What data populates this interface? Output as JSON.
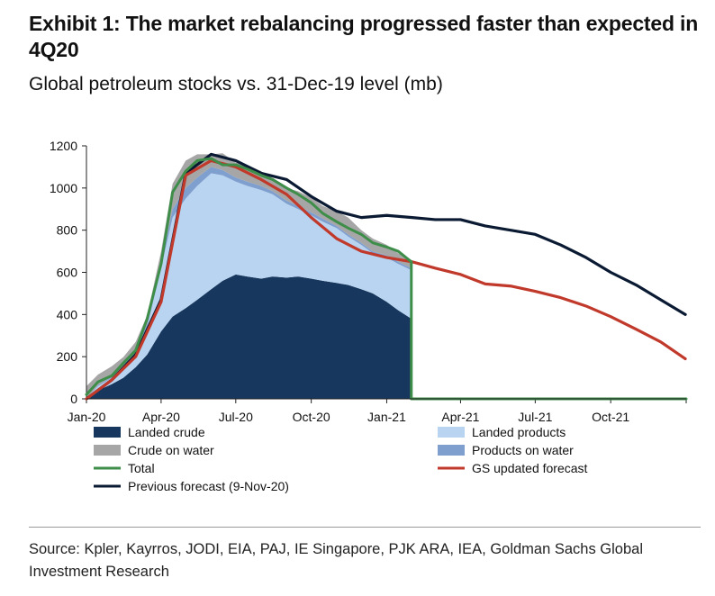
{
  "title": "Exhibit 1: The market rebalancing progressed faster than expected in 4Q20",
  "subtitle": "Global petroleum stocks vs. 31-Dec-19 level (mb)",
  "source": "Source: Kpler, Kayrros, JODI, EIA, PAJ, IE Singapore, PJK ARA, IEA, Goldman Sachs Global Investment Research",
  "colors": {
    "landed_crude": "#17375e",
    "landed_products": "#b8d4f0",
    "crude_on_water": "#a6a6a6",
    "products_on_water": "#7f9fcf",
    "total": "#3e8e4a",
    "gs_updated": "#c0392b",
    "previous": "#0b1a33"
  },
  "chart_data": {
    "type": "area",
    "x_ticks": [
      "Jan-20",
      "Apr-20",
      "Jul-20",
      "Oct-20",
      "Jan-21",
      "Apr-21",
      "Jul-21",
      "Oct-21"
    ],
    "y_ticks": [
      "0",
      "200",
      "400",
      "600",
      "800",
      "1000",
      "1200"
    ],
    "xlim": [
      "2020-01-01",
      "2022-01-01"
    ],
    "ylim": [
      0,
      1200
    ],
    "legend": [
      {
        "name": "Landed crude",
        "swatch": "box",
        "color_key": "landed_crude"
      },
      {
        "name": "Landed products",
        "swatch": "box",
        "color_key": "landed_products"
      },
      {
        "name": "Crude on water",
        "swatch": "box",
        "color_key": "crude_on_water"
      },
      {
        "name": "Products on water",
        "swatch": "box",
        "color_key": "products_on_water"
      },
      {
        "name": "Total",
        "swatch": "line",
        "color_key": "total"
      },
      {
        "name": "GS updated forecast",
        "swatch": "line",
        "color_key": "gs_updated"
      },
      {
        "name": "Previous forecast (9-Nov-20)",
        "swatch": "line",
        "color_key": "previous"
      }
    ],
    "stack_dates": [
      "2020-01-01",
      "2020-01-15",
      "2020-02-01",
      "2020-02-15",
      "2020-03-01",
      "2020-03-15",
      "2020-04-01",
      "2020-04-15",
      "2020-05-01",
      "2020-05-15",
      "2020-06-01",
      "2020-06-15",
      "2020-07-01",
      "2020-07-15",
      "2020-08-01",
      "2020-08-15",
      "2020-09-01",
      "2020-09-15",
      "2020-10-01",
      "2020-10-15",
      "2020-11-01",
      "2020-11-15",
      "2020-12-01",
      "2020-12-15",
      "2021-01-01",
      "2021-01-15",
      "2021-01-31"
    ],
    "series": [
      {
        "name": "Landed crude",
        "values": [
          0,
          40,
          70,
          100,
          150,
          210,
          320,
          390,
          430,
          470,
          520,
          560,
          590,
          580,
          570,
          580,
          575,
          580,
          570,
          560,
          550,
          540,
          520,
          500,
          460,
          420,
          380
        ]
      },
      {
        "name": "Landed products",
        "values": [
          0,
          20,
          30,
          50,
          80,
          130,
          300,
          470,
          520,
          540,
          550,
          500,
          440,
          430,
          420,
          390,
          350,
          320,
          300,
          280,
          260,
          230,
          210,
          190,
          210,
          220,
          230
        ]
      },
      {
        "name": "Products on water",
        "values": [
          0,
          5,
          5,
          8,
          10,
          15,
          20,
          40,
          50,
          40,
          30,
          25,
          20,
          20,
          20,
          15,
          15,
          15,
          15,
          15,
          10,
          10,
          10,
          10,
          10,
          10,
          10
        ]
      },
      {
        "name": "Crude on water",
        "values": [
          60,
          50,
          50,
          40,
          30,
          40,
          60,
          120,
          130,
          110,
          60,
          80,
          70,
          80,
          70,
          60,
          60,
          70,
          70,
          60,
          70,
          80,
          60,
          60,
          50,
          40,
          40
        ]
      },
      {
        "name": "Total",
        "values": [
          20,
          80,
          110,
          170,
          230,
          380,
          640,
          980,
          1080,
          1130,
          1140,
          1110,
          1110,
          1090,
          1060,
          1040,
          1000,
          970,
          930,
          880,
          840,
          810,
          780,
          740,
          720,
          700,
          650
        ]
      },
      {
        "name": "GS updated forecast",
        "x": [
          "2020-01-01",
          "2020-02-01",
          "2020-03-01",
          "2020-04-01",
          "2020-05-01",
          "2020-06-01",
          "2020-07-01",
          "2020-08-01",
          "2020-09-01",
          "2020-10-01",
          "2020-11-01",
          "2020-12-01",
          "2021-01-01",
          "2021-02-01",
          "2021-03-01",
          "2021-04-01",
          "2021-05-01",
          "2021-06-01",
          "2021-07-01",
          "2021-08-01",
          "2021-09-01",
          "2021-10-01",
          "2021-11-01",
          "2021-12-01",
          "2021-12-31"
        ],
        "values": [
          0,
          90,
          200,
          460,
          1060,
          1130,
          1100,
          1040,
          970,
          860,
          760,
          700,
          670,
          650,
          620,
          590,
          545,
          535,
          510,
          480,
          440,
          390,
          330,
          270,
          190
        ]
      },
      {
        "name": "Previous forecast (9-Nov-20)",
        "x": [
          "2020-01-01",
          "2020-02-01",
          "2020-03-01",
          "2020-04-01",
          "2020-05-01",
          "2020-06-01",
          "2020-07-01",
          "2020-08-01",
          "2020-09-01",
          "2020-10-01",
          "2020-11-01",
          "2020-12-01",
          "2021-01-01",
          "2021-02-01",
          "2021-03-01",
          "2021-04-01",
          "2021-05-01",
          "2021-06-01",
          "2021-07-01",
          "2021-08-01",
          "2021-09-01",
          "2021-10-01",
          "2021-11-01",
          "2021-12-01",
          "2021-12-31"
        ],
        "values": [
          0,
          90,
          210,
          470,
          1070,
          1160,
          1130,
          1070,
          1040,
          960,
          890,
          860,
          870,
          860,
          850,
          850,
          820,
          800,
          780,
          730,
          670,
          600,
          540,
          470,
          400
        ]
      }
    ],
    "total_drop": {
      "x": "2021-02-01",
      "value": 0
    }
  }
}
